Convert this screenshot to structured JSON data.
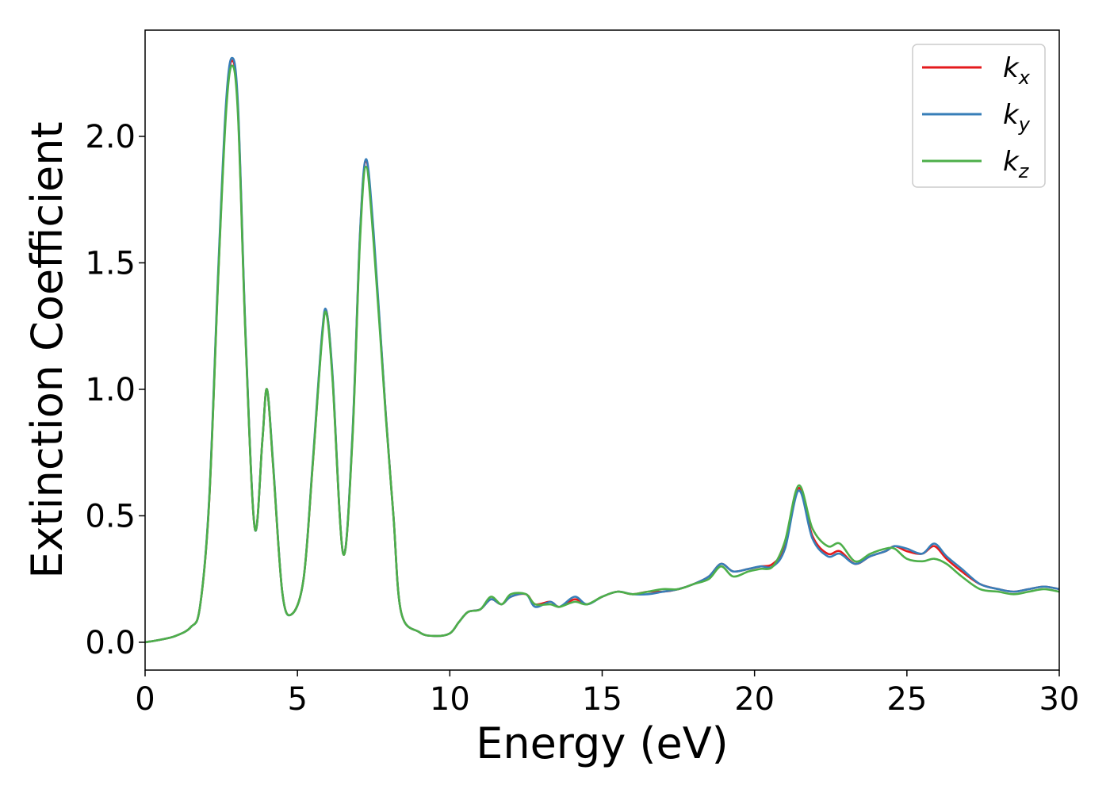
{
  "chart_data": {
    "type": "line",
    "title": "",
    "xlabel": "Energy (eV)",
    "ylabel": "Extinction Coefficient",
    "xlim": [
      0,
      30
    ],
    "ylim": [
      -0.11,
      2.42
    ],
    "xticks": [
      0,
      5,
      10,
      15,
      20,
      25,
      30
    ],
    "xtick_labels": [
      "0",
      "5",
      "10",
      "15",
      "20",
      "25",
      "30"
    ],
    "yticks": [
      0.0,
      0.5,
      1.0,
      1.5,
      2.0
    ],
    "ytick_labels": [
      "0.0",
      "0.5",
      "1.0",
      "1.5",
      "2.0"
    ],
    "grid": false,
    "legend_position": "top-right",
    "series": [
      {
        "name": "k_x",
        "label_base": "k",
        "label_sub": "x",
        "color": "#e41a1c",
        "points": [
          [
            0,
            0.0
          ],
          [
            0.5,
            0.01
          ],
          [
            1.0,
            0.025
          ],
          [
            1.5,
            0.06
          ],
          [
            1.8,
            0.14
          ],
          [
            2.1,
            0.55
          ],
          [
            2.4,
            1.45
          ],
          [
            2.65,
            2.1
          ],
          [
            2.85,
            2.3
          ],
          [
            3.05,
            2.1
          ],
          [
            3.3,
            1.2
          ],
          [
            3.6,
            0.45
          ],
          [
            3.85,
            0.8
          ],
          [
            4.0,
            1.0
          ],
          [
            4.2,
            0.7
          ],
          [
            4.5,
            0.2
          ],
          [
            4.8,
            0.11
          ],
          [
            5.2,
            0.25
          ],
          [
            5.5,
            0.7
          ],
          [
            5.8,
            1.2
          ],
          [
            5.95,
            1.31
          ],
          [
            6.15,
            1.05
          ],
          [
            6.5,
            0.35
          ],
          [
            6.8,
            0.8
          ],
          [
            7.05,
            1.6
          ],
          [
            7.25,
            1.9
          ],
          [
            7.5,
            1.6
          ],
          [
            7.9,
            0.9
          ],
          [
            8.15,
            0.5
          ],
          [
            8.4,
            0.12
          ],
          [
            9.0,
            0.04
          ],
          [
            9.5,
            0.025
          ],
          [
            10.0,
            0.035
          ],
          [
            10.3,
            0.08
          ],
          [
            10.6,
            0.12
          ],
          [
            11.0,
            0.13
          ],
          [
            11.35,
            0.17
          ],
          [
            11.7,
            0.15
          ],
          [
            12.0,
            0.18
          ],
          [
            12.5,
            0.19
          ],
          [
            12.8,
            0.15
          ],
          [
            13.3,
            0.16
          ],
          [
            13.6,
            0.14
          ],
          [
            14.1,
            0.17
          ],
          [
            14.5,
            0.15
          ],
          [
            15.0,
            0.18
          ],
          [
            15.5,
            0.2
          ],
          [
            16.0,
            0.19
          ],
          [
            16.5,
            0.2
          ],
          [
            17.0,
            0.2
          ],
          [
            17.5,
            0.21
          ],
          [
            18.0,
            0.23
          ],
          [
            18.5,
            0.26
          ],
          [
            18.9,
            0.31
          ],
          [
            19.3,
            0.28
          ],
          [
            19.8,
            0.29
          ],
          [
            20.2,
            0.3
          ],
          [
            20.6,
            0.31
          ],
          [
            21.0,
            0.38
          ],
          [
            21.45,
            0.61
          ],
          [
            21.9,
            0.42
          ],
          [
            22.4,
            0.35
          ],
          [
            22.8,
            0.36
          ],
          [
            23.3,
            0.31
          ],
          [
            23.8,
            0.34
          ],
          [
            24.3,
            0.36
          ],
          [
            24.6,
            0.38
          ],
          [
            25.0,
            0.36
          ],
          [
            25.5,
            0.35
          ],
          [
            25.9,
            0.38
          ],
          [
            26.3,
            0.33
          ],
          [
            26.8,
            0.28
          ],
          [
            27.4,
            0.23
          ],
          [
            28.0,
            0.21
          ],
          [
            28.5,
            0.2
          ],
          [
            29.0,
            0.21
          ],
          [
            29.5,
            0.22
          ],
          [
            30.0,
            0.21
          ]
        ]
      },
      {
        "name": "k_y",
        "label_base": "k",
        "label_sub": "y",
        "color": "#377eb8",
        "points": [
          [
            0,
            0.0
          ],
          [
            0.5,
            0.01
          ],
          [
            1.0,
            0.025
          ],
          [
            1.5,
            0.06
          ],
          [
            1.8,
            0.14
          ],
          [
            2.1,
            0.56
          ],
          [
            2.4,
            1.47
          ],
          [
            2.65,
            2.12
          ],
          [
            2.85,
            2.31
          ],
          [
            3.05,
            2.12
          ],
          [
            3.3,
            1.21
          ],
          [
            3.6,
            0.45
          ],
          [
            3.85,
            0.8
          ],
          [
            4.0,
            1.0
          ],
          [
            4.2,
            0.71
          ],
          [
            4.5,
            0.2
          ],
          [
            4.8,
            0.11
          ],
          [
            5.2,
            0.25
          ],
          [
            5.5,
            0.71
          ],
          [
            5.8,
            1.21
          ],
          [
            5.95,
            1.31
          ],
          [
            6.15,
            1.06
          ],
          [
            6.5,
            0.35
          ],
          [
            6.8,
            0.81
          ],
          [
            7.05,
            1.61
          ],
          [
            7.25,
            1.91
          ],
          [
            7.5,
            1.62
          ],
          [
            7.9,
            0.9
          ],
          [
            8.15,
            0.5
          ],
          [
            8.4,
            0.12
          ],
          [
            9.0,
            0.04
          ],
          [
            9.5,
            0.025
          ],
          [
            10.0,
            0.035
          ],
          [
            10.3,
            0.08
          ],
          [
            10.6,
            0.12
          ],
          [
            11.0,
            0.13
          ],
          [
            11.35,
            0.17
          ],
          [
            11.7,
            0.15
          ],
          [
            12.0,
            0.18
          ],
          [
            12.5,
            0.19
          ],
          [
            12.8,
            0.14
          ],
          [
            13.3,
            0.16
          ],
          [
            13.6,
            0.14
          ],
          [
            14.1,
            0.18
          ],
          [
            14.5,
            0.15
          ],
          [
            15.0,
            0.18
          ],
          [
            15.5,
            0.2
          ],
          [
            16.0,
            0.19
          ],
          [
            16.5,
            0.19
          ],
          [
            17.0,
            0.2
          ],
          [
            17.5,
            0.21
          ],
          [
            18.0,
            0.23
          ],
          [
            18.5,
            0.26
          ],
          [
            18.9,
            0.31
          ],
          [
            19.3,
            0.28
          ],
          [
            19.8,
            0.29
          ],
          [
            20.2,
            0.3
          ],
          [
            20.6,
            0.3
          ],
          [
            21.0,
            0.37
          ],
          [
            21.45,
            0.6
          ],
          [
            21.9,
            0.41
          ],
          [
            22.4,
            0.34
          ],
          [
            22.8,
            0.35
          ],
          [
            23.3,
            0.31
          ],
          [
            23.8,
            0.34
          ],
          [
            24.3,
            0.36
          ],
          [
            24.6,
            0.38
          ],
          [
            25.0,
            0.37
          ],
          [
            25.5,
            0.35
          ],
          [
            25.9,
            0.39
          ],
          [
            26.3,
            0.34
          ],
          [
            26.8,
            0.29
          ],
          [
            27.4,
            0.23
          ],
          [
            28.0,
            0.21
          ],
          [
            28.5,
            0.2
          ],
          [
            29.0,
            0.21
          ],
          [
            29.5,
            0.22
          ],
          [
            30.0,
            0.21
          ]
        ]
      },
      {
        "name": "k_z",
        "label_base": "k",
        "label_sub": "z",
        "color": "#4daf4a",
        "points": [
          [
            0,
            0.0
          ],
          [
            0.5,
            0.01
          ],
          [
            1.0,
            0.025
          ],
          [
            1.5,
            0.06
          ],
          [
            1.8,
            0.14
          ],
          [
            2.1,
            0.55
          ],
          [
            2.4,
            1.44
          ],
          [
            2.65,
            2.08
          ],
          [
            2.85,
            2.28
          ],
          [
            3.05,
            2.08
          ],
          [
            3.3,
            1.19
          ],
          [
            3.6,
            0.45
          ],
          [
            3.85,
            0.8
          ],
          [
            4.0,
            1.0
          ],
          [
            4.2,
            0.7
          ],
          [
            4.5,
            0.2
          ],
          [
            4.8,
            0.11
          ],
          [
            5.2,
            0.25
          ],
          [
            5.5,
            0.7
          ],
          [
            5.8,
            1.19
          ],
          [
            5.95,
            1.3
          ],
          [
            6.15,
            1.04
          ],
          [
            6.5,
            0.35
          ],
          [
            6.8,
            0.79
          ],
          [
            7.05,
            1.58
          ],
          [
            7.25,
            1.88
          ],
          [
            7.5,
            1.58
          ],
          [
            7.9,
            0.89
          ],
          [
            8.15,
            0.5
          ],
          [
            8.4,
            0.12
          ],
          [
            9.0,
            0.04
          ],
          [
            9.5,
            0.025
          ],
          [
            10.0,
            0.035
          ],
          [
            10.3,
            0.08
          ],
          [
            10.6,
            0.12
          ],
          [
            11.0,
            0.13
          ],
          [
            11.35,
            0.18
          ],
          [
            11.7,
            0.15
          ],
          [
            12.0,
            0.19
          ],
          [
            12.5,
            0.19
          ],
          [
            12.8,
            0.15
          ],
          [
            13.3,
            0.15
          ],
          [
            13.6,
            0.14
          ],
          [
            14.1,
            0.16
          ],
          [
            14.5,
            0.15
          ],
          [
            15.0,
            0.18
          ],
          [
            15.5,
            0.2
          ],
          [
            16.0,
            0.19
          ],
          [
            16.5,
            0.2
          ],
          [
            17.0,
            0.21
          ],
          [
            17.5,
            0.21
          ],
          [
            18.0,
            0.23
          ],
          [
            18.5,
            0.25
          ],
          [
            18.9,
            0.3
          ],
          [
            19.3,
            0.26
          ],
          [
            19.8,
            0.28
          ],
          [
            20.2,
            0.29
          ],
          [
            20.6,
            0.3
          ],
          [
            21.0,
            0.4
          ],
          [
            21.45,
            0.62
          ],
          [
            21.9,
            0.45
          ],
          [
            22.4,
            0.38
          ],
          [
            22.8,
            0.39
          ],
          [
            23.3,
            0.32
          ],
          [
            23.8,
            0.35
          ],
          [
            24.3,
            0.37
          ],
          [
            24.6,
            0.37
          ],
          [
            25.0,
            0.33
          ],
          [
            25.5,
            0.32
          ],
          [
            25.9,
            0.33
          ],
          [
            26.3,
            0.31
          ],
          [
            26.8,
            0.26
          ],
          [
            27.4,
            0.21
          ],
          [
            28.0,
            0.2
          ],
          [
            28.5,
            0.19
          ],
          [
            29.0,
            0.2
          ],
          [
            29.5,
            0.21
          ],
          [
            30.0,
            0.2
          ]
        ]
      }
    ]
  }
}
